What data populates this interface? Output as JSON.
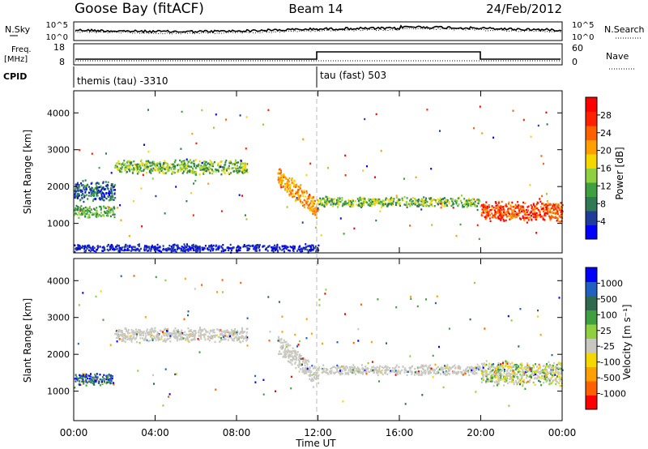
{
  "header": {
    "station": "Goose Bay (fitACF)",
    "beam": "Beam 14",
    "date": "24/Feb/2012"
  },
  "noise_panel": {
    "left_label": "N.Sky",
    "right_label": "N.Search",
    "left_ticks": [
      "10^5",
      "10^0"
    ],
    "right_ticks": [
      "10^5",
      "10^0"
    ]
  },
  "freq_panel": {
    "left_label_line1": "Freq.",
    "left_label_line2": "[MHz]",
    "right_label": "Nave",
    "left_ticks": [
      "18",
      "8"
    ],
    "right_ticks": [
      "60",
      "0"
    ]
  },
  "cpid": {
    "label": "CPID",
    "segments": [
      {
        "text": "themis (tau) -3310",
        "start_hour": 0
      },
      {
        "text": "tau (fast) 503",
        "start_hour": 12
      }
    ]
  },
  "x_axis": {
    "label": "Time UT",
    "ticks": [
      "00:00",
      "04:00",
      "08:00",
      "12:00",
      "16:00",
      "20:00",
      "00:00"
    ]
  },
  "chart_data": [
    {
      "type": "heatmap",
      "name": "power",
      "xlabel": "Time UT",
      "ylabel": "Slant Range [km]",
      "xlim": [
        0,
        24
      ],
      "ylim": [
        200,
        4600
      ],
      "yticks": [
        1000,
        2000,
        3000,
        4000
      ],
      "colorbar": {
        "label": "Power [dB]",
        "ticks": [
          "4",
          "8",
          "12",
          "16",
          "20",
          "24",
          "28"
        ],
        "colors": [
          "#0000ff",
          "#203c9a",
          "#2f7a54",
          "#3fa040",
          "#8fd040",
          "#f4d800",
          "#ffa000",
          "#ff6000",
          "#ff2000",
          "#ff0000"
        ]
      },
      "echo_bands": [
        {
          "t0": 0.0,
          "t1": 2.0,
          "r_center": 1900,
          "r_width": 500,
          "dominant": "blue-green"
        },
        {
          "t0": 0.0,
          "t1": 2.0,
          "r_center": 1350,
          "r_width": 300,
          "dominant": "green"
        },
        {
          "t0": 2.0,
          "t1": 8.5,
          "r_center": 2550,
          "r_width": 350,
          "dominant": "green-yellow"
        },
        {
          "t0": 10.0,
          "t1": 12.0,
          "r_center": 1500,
          "r_width": 500,
          "dominant": "orange"
        },
        {
          "t0": 12.0,
          "t1": 20.0,
          "r_center": 1600,
          "r_width": 250,
          "dominant": "green-yellow"
        },
        {
          "t0": 20.0,
          "t1": 24.0,
          "r_center": 1350,
          "r_width": 500,
          "dominant": "orange-red"
        },
        {
          "t0": 0.0,
          "t1": 12.0,
          "r_center": 350,
          "r_width": 200,
          "dominant": "blue"
        }
      ]
    },
    {
      "type": "heatmap",
      "name": "velocity",
      "xlabel": "Time UT",
      "ylabel": "Slant Range [km]",
      "xlim": [
        0,
        24
      ],
      "ylim": [
        200,
        4600
      ],
      "yticks": [
        1000,
        2000,
        3000,
        4000
      ],
      "colorbar": {
        "label": "Velocity [m s⁻¹]",
        "ticks": [
          "1000",
          "500",
          "100",
          "25",
          "-25",
          "-100",
          "-500",
          "-1000"
        ],
        "colors": [
          "#0000ff",
          "#2060c0",
          "#306850",
          "#3fa040",
          "#8fd040",
          "#c8c8c0",
          "#f4d800",
          "#ffa000",
          "#ff6000",
          "#ff0000"
        ]
      },
      "echo_bands": [
        {
          "t0": 0.0,
          "t1": 2.0,
          "r_center": 1350,
          "r_width": 300,
          "dominant": "green-blue"
        },
        {
          "t0": 2.0,
          "t1": 8.5,
          "r_center": 2550,
          "r_width": 350,
          "dominant": "grey"
        },
        {
          "t0": 10.0,
          "t1": 12.0,
          "r_center": 1500,
          "r_width": 500,
          "dominant": "grey"
        },
        {
          "t0": 12.0,
          "t1": 20.0,
          "r_center": 1600,
          "r_width": 250,
          "dominant": "grey"
        },
        {
          "t0": 20.0,
          "t1": 24.0,
          "r_center": 1500,
          "r_width": 600,
          "dominant": "grey-green"
        }
      ]
    }
  ]
}
